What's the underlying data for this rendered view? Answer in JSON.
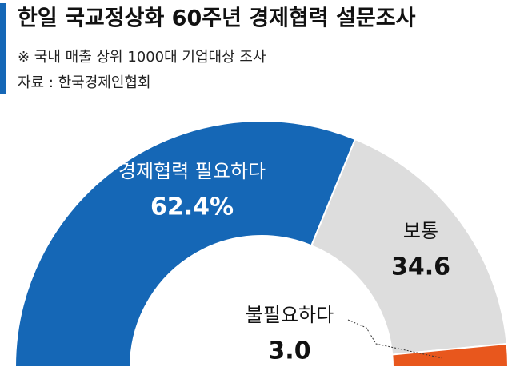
{
  "chart_data": {
    "type": "semidonut",
    "title": "한일 국교정상화 60주년 경제협력 설문조사",
    "subtitle": "※ 국내 매출 상위 1000대 기업대상 조사",
    "source": "자료 : 한국경제인협회",
    "categories": [
      "경제협력 필요하다",
      "보통",
      "불필요하다"
    ],
    "values": [
      62.4,
      34.6,
      3.0
    ],
    "value_labels": [
      "62.4%",
      "34.6",
      "3.0"
    ],
    "colors": [
      "#1567b6",
      "#dddddd",
      "#e8571d"
    ]
  }
}
